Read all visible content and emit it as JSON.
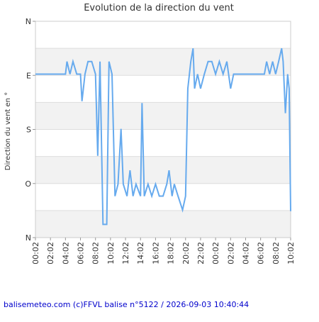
{
  "chart_data": {
    "type": "line",
    "title": "Evolution de la direction du vent",
    "y_label": "Direction du vent en °",
    "footer": "balisemeteo.com (c)FFVL balise n°5122 / 2026-09-03 10:40:44",
    "ylim": [
      0,
      360
    ],
    "yticks": [
      {
        "value": 0,
        "label": "N"
      },
      {
        "value": 90,
        "label": "E"
      },
      {
        "value": 180,
        "label": "S"
      },
      {
        "value": 270,
        "label": "O"
      },
      {
        "value": 360,
        "label": "N"
      }
    ],
    "grid_step": 45,
    "xlim": [
      0,
      34
    ],
    "xticks": [
      {
        "value": 0,
        "label": "00:02"
      },
      {
        "value": 2,
        "label": "02:02"
      },
      {
        "value": 4,
        "label": "04:02"
      },
      {
        "value": 6,
        "label": "06:02"
      },
      {
        "value": 8,
        "label": "08:02"
      },
      {
        "value": 10,
        "label": "10:02"
      },
      {
        "value": 12,
        "label": "12:02"
      },
      {
        "value": 14,
        "label": "14:02"
      },
      {
        "value": 16,
        "label": "16:02"
      },
      {
        "value": 18,
        "label": "18:02"
      },
      {
        "value": 20,
        "label": "20:02"
      },
      {
        "value": 22,
        "label": "22:02"
      },
      {
        "value": 24,
        "label": "00:02"
      },
      {
        "value": 26,
        "label": "02:02"
      },
      {
        "value": 28,
        "label": "04:02"
      },
      {
        "value": 30,
        "label": "06:02"
      },
      {
        "value": 32,
        "label": "08:02"
      },
      {
        "value": 34,
        "label": "10:02"
      }
    ],
    "series": [
      {
        "name": "direction",
        "color": "#66aaee",
        "x": [
          0,
          1,
          2,
          3,
          4,
          4.2,
          4.6,
          5,
          5.5,
          6,
          6.2,
          6.6,
          7,
          7.5,
          8,
          8.3,
          8.6,
          9,
          9.5,
          9.8,
          10.2,
          10.6,
          11,
          11.4,
          11.7,
          12.2,
          12.6,
          13,
          13.4,
          14,
          14.2,
          14.5,
          15,
          15.5,
          16,
          16.5,
          17,
          17.5,
          17.8,
          18.2,
          18.5,
          19,
          19.6,
          20,
          20.3,
          20.7,
          21,
          21.2,
          21.6,
          22,
          22.5,
          23,
          23.5,
          24,
          24.5,
          25,
          25.5,
          26,
          26.4,
          27,
          28,
          29,
          30,
          30.5,
          30.8,
          31.2,
          31.6,
          32,
          32.4,
          32.8,
          33,
          33.3,
          33.6,
          33.8,
          34
        ],
        "values": [
          88,
          88,
          88,
          88,
          88,
          67,
          88,
          67,
          88,
          88,
          133,
          88,
          67,
          67,
          88,
          224,
          67,
          338,
          338,
          67,
          88,
          291,
          271,
          179,
          271,
          291,
          248,
          291,
          271,
          291,
          136,
          291,
          271,
          291,
          271,
          291,
          291,
          271,
          248,
          291,
          271,
          291,
          314,
          291,
          112,
          67,
          45,
          112,
          88,
          112,
          88,
          67,
          67,
          88,
          67,
          88,
          67,
          112,
          88,
          88,
          88,
          88,
          88,
          88,
          67,
          88,
          67,
          88,
          67,
          45,
          67,
          153,
          88,
          112,
          316
        ]
      }
    ]
  }
}
